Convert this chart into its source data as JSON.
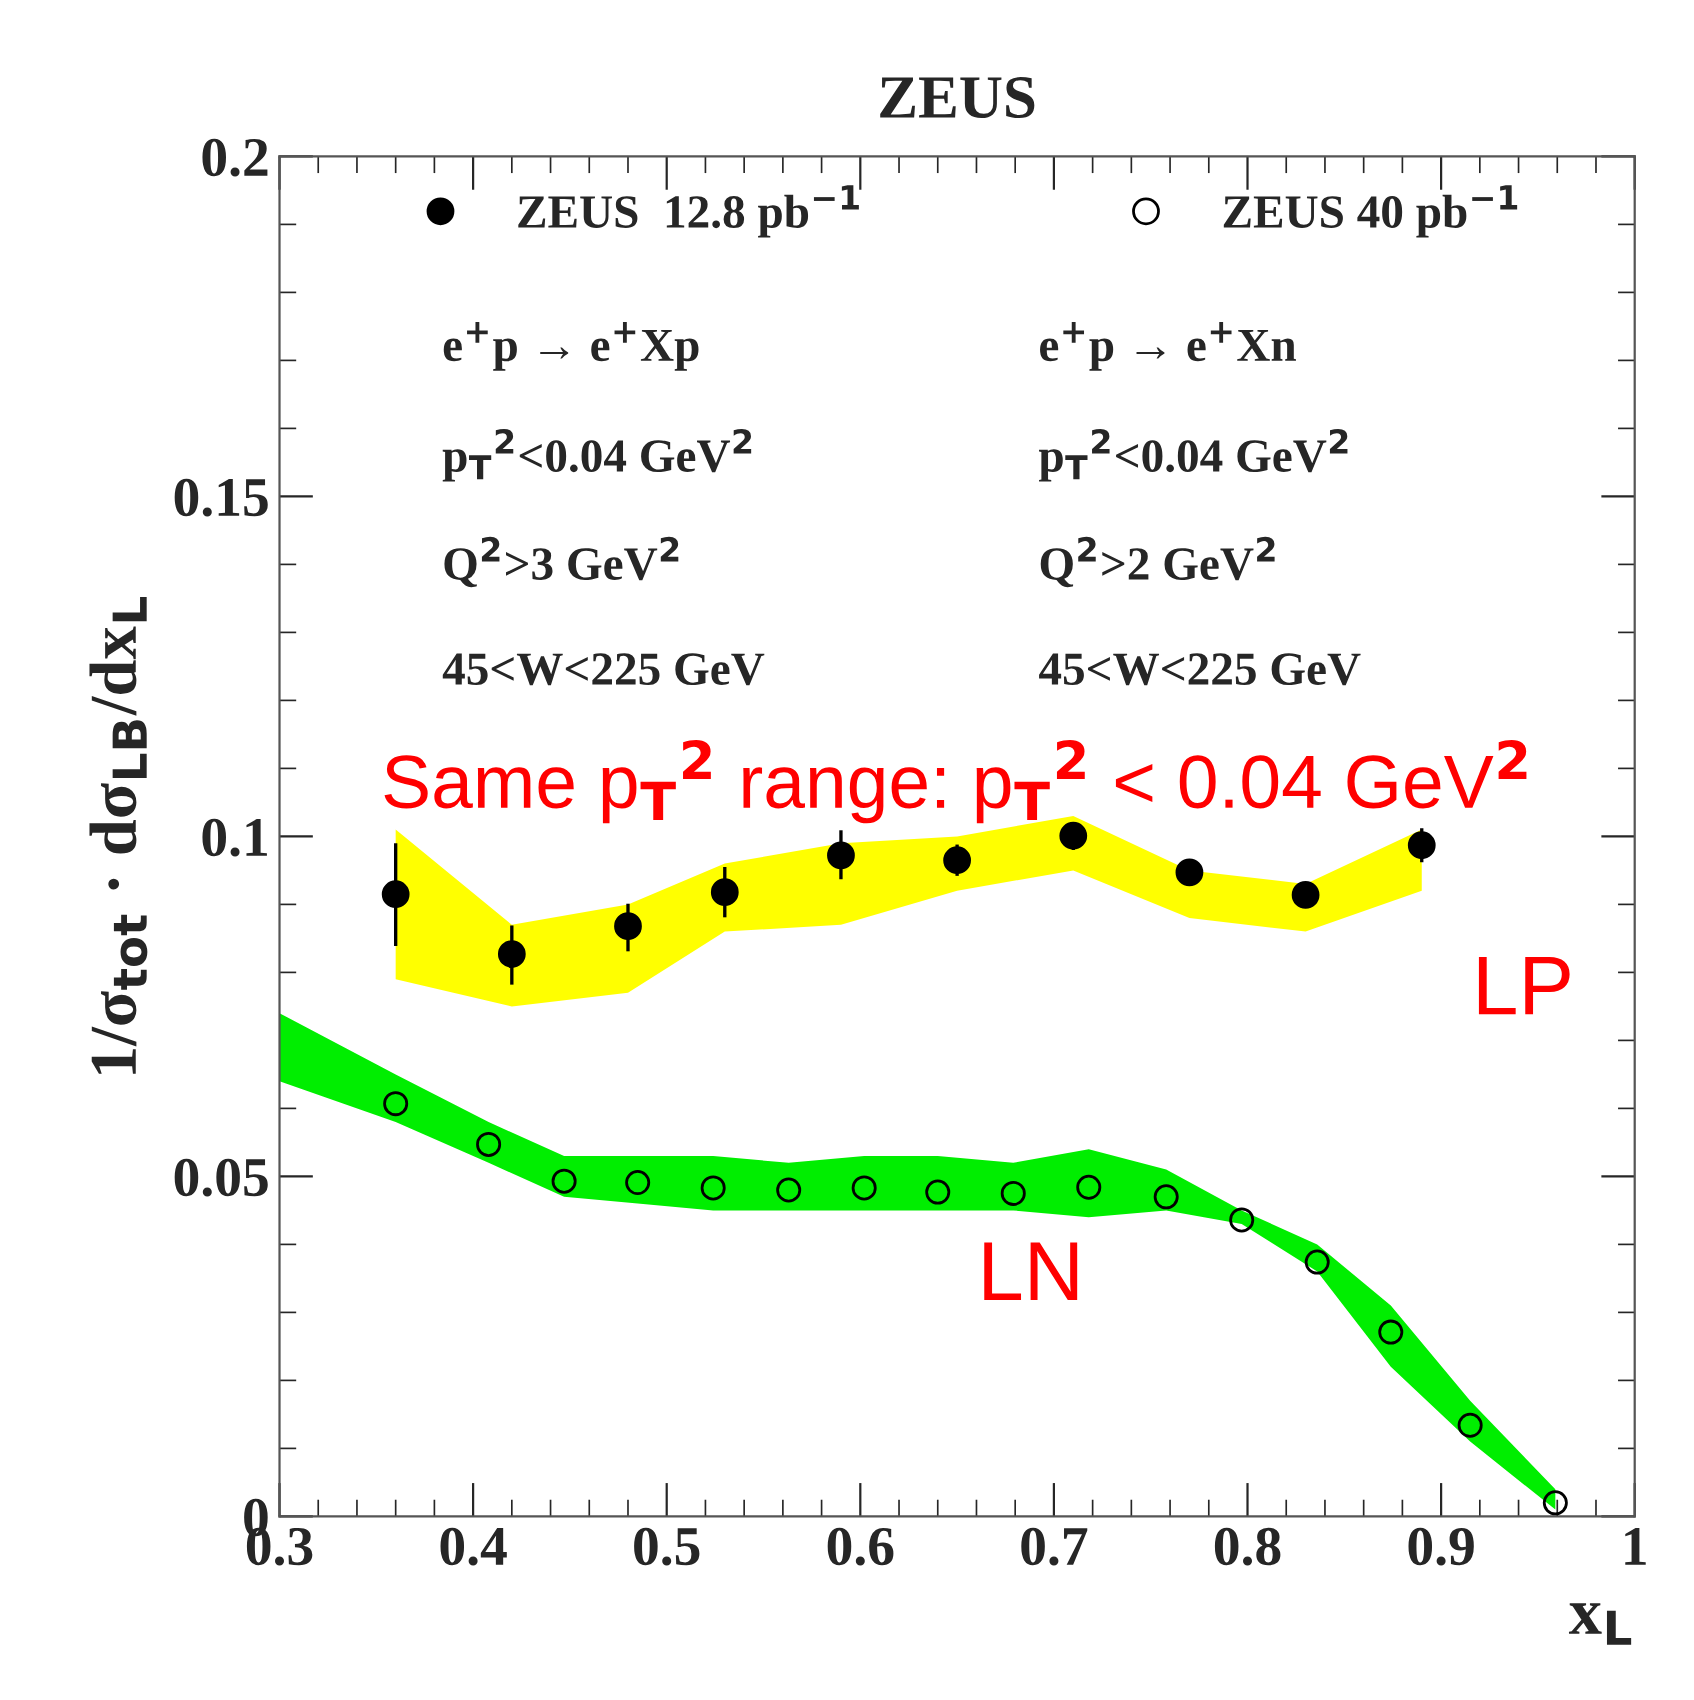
{
  "chart_data": {
    "type": "scatter",
    "title": "ZEUS",
    "xlabel": "x$_{L}$",
    "ylabel": "1/σ$_{tot}$ · dσ$_{LB}$/dx$_{L}$",
    "xlim": [
      0.3,
      1.0
    ],
    "ylim": [
      0,
      0.2
    ],
    "xticks": [
      {
        "value": 0.3,
        "label": "0.3"
      },
      {
        "value": 0.4,
        "label": "0.4"
      },
      {
        "value": 0.5,
        "label": "0.5"
      },
      {
        "value": 0.6,
        "label": "0.6"
      },
      {
        "value": 0.7,
        "label": "0.7"
      },
      {
        "value": 0.8,
        "label": "0.8"
      },
      {
        "value": 0.9,
        "label": "0.9"
      },
      {
        "value": 1.0,
        "label": "1"
      }
    ],
    "yticks": [
      {
        "value": 0,
        "label": "0"
      },
      {
        "value": 0.05,
        "label": "0.05"
      },
      {
        "value": 0.1,
        "label": "0.1"
      },
      {
        "value": 0.15,
        "label": "0.15"
      },
      {
        "value": 0.2,
        "label": "0.2"
      }
    ],
    "grid": false,
    "legend": "top",
    "series": [
      {
        "name": "ZEUS  12.8 pb$^{−1}$",
        "color": "#ffff00",
        "colors": [
          "#000000",
          "#000000",
          "#000000",
          "#000000",
          "#000000",
          "#000000",
          "#000000",
          "#000000",
          "#000000",
          "#000000"
        ],
        "marker": "circle",
        "x": [
          0.36,
          0.42,
          0.48,
          0.53,
          0.59,
          0.65,
          0.71,
          0.77,
          0.83,
          0.89
        ],
        "values": [
          0.0915,
          0.0827,
          0.0868,
          0.0918,
          0.0972,
          0.0965,
          0.1001,
          0.0947,
          0.0914,
          0.0987
        ],
        "lower": [
          0.079,
          0.075,
          0.077,
          0.086,
          0.087,
          0.092,
          0.095,
          0.088,
          0.086,
          0.092
        ],
        "upper": [
          0.101,
          0.087,
          0.09,
          0.096,
          0.099,
          0.1,
          0.103,
          0.095,
          0.093,
          0.101
        ],
        "errors": [
          [
            0.0839,
            0.099
          ],
          [
            0.0782,
            0.0869
          ],
          [
            0.0831,
            0.0901
          ],
          [
            0.0881,
            0.0955
          ],
          [
            0.0937,
            0.1009
          ],
          [
            0.0942,
            0.0988
          ],
          [
            0.098,
            0.102
          ],
          [
            0.0932,
            0.0962
          ],
          [
            0.0899,
            0.0929
          ],
          [
            0.0962,
            0.1012
          ]
        ]
      },
      {
        "name": "ZEUS 40 pb$^{−1}$",
        "color": "#00ee00",
        "colors": [
          null,
          "#000000",
          "#000000",
          "#000000",
          "#000000",
          "#000000",
          "#000000",
          "#000000",
          "#000000",
          "#000000",
          "#000000",
          "#000000",
          "#000000",
          "#000000",
          "#000000",
          "#000000",
          "#000000"
        ],
        "marker": "circle",
        "x": [
          0.3,
          0.36,
          0.408,
          0.447,
          0.485,
          0.524,
          0.563,
          0.602,
          0.64,
          0.679,
          0.718,
          0.758,
          0.797,
          0.836,
          0.874,
          0.915,
          0.959
        ],
        "values": [
          null,
          0.0607,
          0.0547,
          0.0493,
          0.0491,
          0.0483,
          0.048,
          0.0483,
          0.0477,
          0.0475,
          0.0484,
          0.047,
          0.0436,
          0.0374,
          0.0271,
          0.0134,
          0.002
        ],
        "lower": [
          0.064,
          0.058,
          0.052,
          0.047,
          0.046,
          0.045,
          0.045,
          0.045,
          0.045,
          0.045,
          0.044,
          0.045,
          0.043,
          0.036,
          0.022,
          0.011,
          0.001
        ],
        "upper": [
          0.074,
          0.065,
          0.058,
          0.053,
          0.053,
          0.053,
          0.052,
          0.053,
          0.053,
          0.052,
          0.054,
          0.051,
          0.045,
          0.04,
          0.031,
          0.017,
          0.004
        ]
      }
    ],
    "annotations": [
      "e$^{+}$p → e$^{+}$Xp",
      "p$_{T}$$^{2}$<0.04 GeV$^{2}$",
      "Q$^{2}$>3 GeV$^{2}$",
      "45<W<225 GeV",
      "e$^{+}$p → e$^{+}$Xn",
      "p$_{T}$$^{2}$<0.04 GeV$^{2}$",
      "Q$^{2}$>2 GeV$^{2}$",
      "45<W<225 GeV",
      "Same p$_{T}$$^{2}$ range: p$_{T}$$^{2}$ < 0.04 GeV$^{2}$",
      "LP",
      "LN"
    ]
  }
}
